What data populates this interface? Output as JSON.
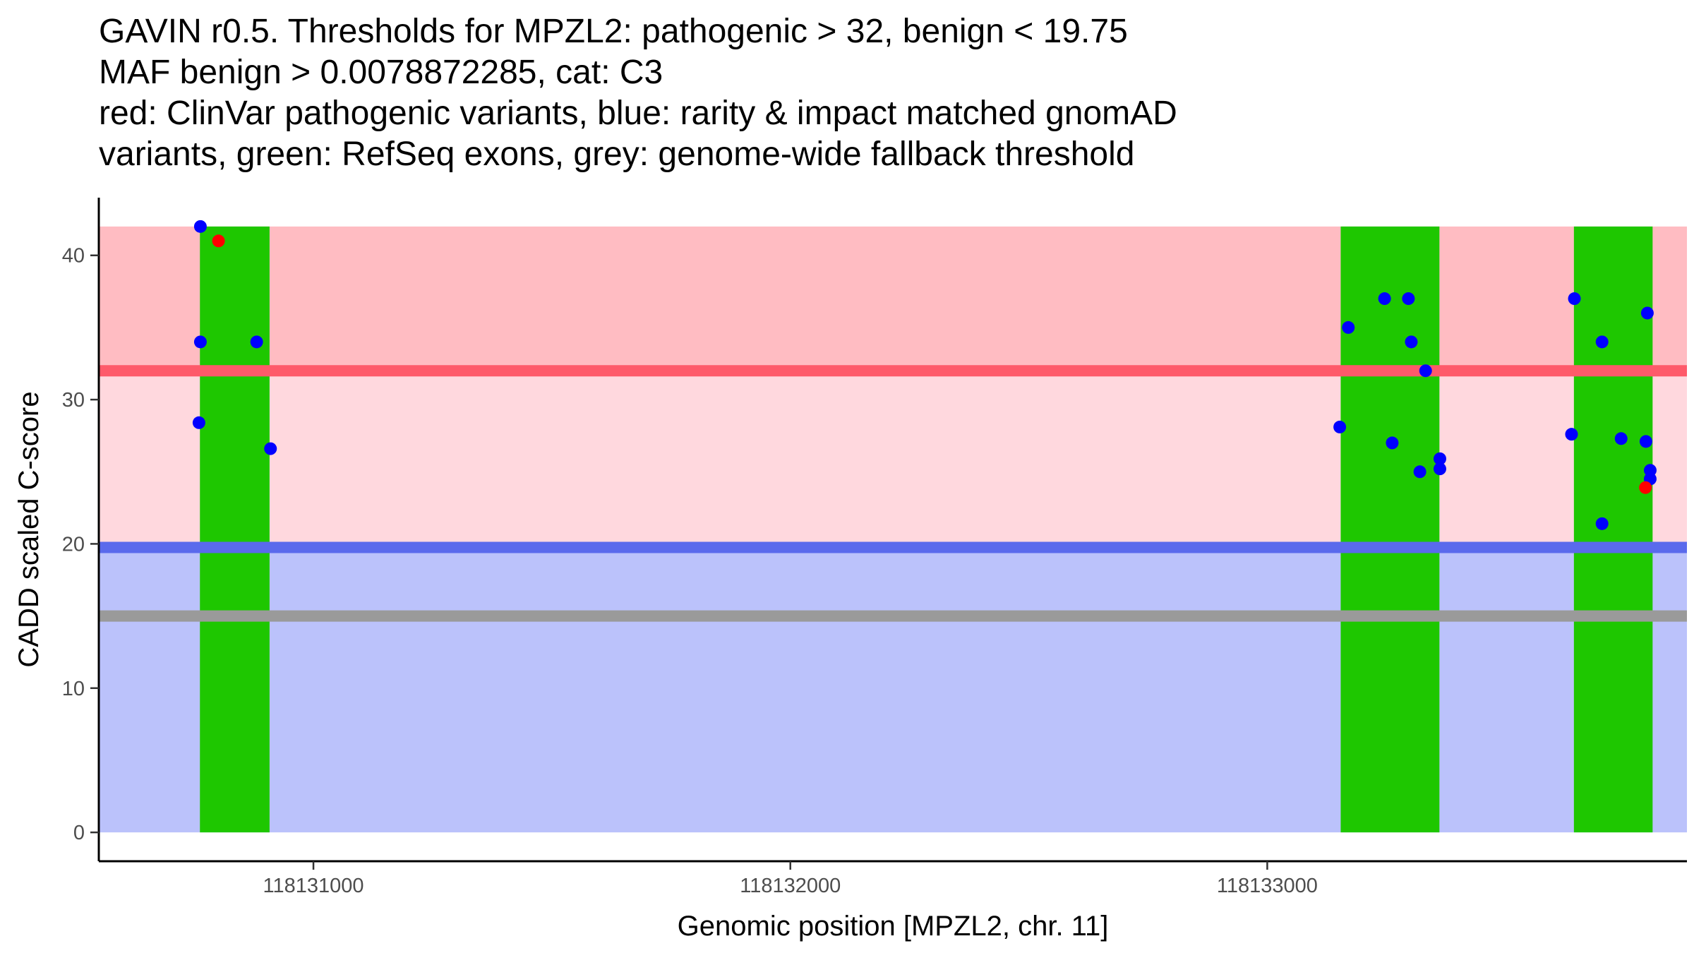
{
  "chart_data": {
    "type": "scatter",
    "title_lines": [
      "GAVIN r0.5. Thresholds for MPZL2: pathogenic > 32, benign < 19.75",
      "MAF benign > 0.0078872285, cat: C3",
      "red: ClinVar pathogenic variants, blue: rarity & impact matched gnomAD",
      "variants, green: RefSeq exons, grey: genome-wide fallback threshold"
    ],
    "xlabel": "Genomic position [MPZL2, chr. 11]",
    "ylabel": "CADD scaled C-score",
    "xlim": [
      118130550,
      118133880
    ],
    "ylim": [
      -2,
      44
    ],
    "x_ticks": [
      118131000,
      118132000,
      118133000
    ],
    "y_ticks": [
      0,
      10,
      20,
      30,
      40
    ],
    "thresholds": {
      "pathogenic": 32,
      "benign": 19.75,
      "fallback": 15,
      "max_score": 42
    },
    "colors": {
      "pathogenic_band": "#ffbcc2",
      "mid_band": "#ffd8de",
      "benign_band": "#bbc2fb",
      "pathogenic_line": "#fe5a6a",
      "benign_line": "#5a6aec",
      "fallback_line": "#9a9a9a",
      "exon": "#1ec700",
      "clinvar": "#ff0000",
      "gnomad": "#0000ff"
    },
    "exons": [
      {
        "start": 118130762,
        "end": 118130908
      },
      {
        "start": 118133154,
        "end": 118133361
      },
      {
        "start": 118133643,
        "end": 118133808
      }
    ],
    "series": [
      {
        "name": "ClinVar pathogenic",
        "color_key": "clinvar",
        "points": [
          {
            "x": 118130801,
            "y": 41
          },
          {
            "x": 118133793,
            "y": 23.9
          }
        ]
      },
      {
        "name": "gnomAD matched",
        "color_key": "gnomad",
        "points": [
          {
            "x": 118130763,
            "y": 42
          },
          {
            "x": 118130763,
            "y": 34
          },
          {
            "x": 118130760,
            "y": 28.4
          },
          {
            "x": 118130881,
            "y": 34
          },
          {
            "x": 118130910,
            "y": 26.6
          },
          {
            "x": 118133152,
            "y": 28.1
          },
          {
            "x": 118133170,
            "y": 35
          },
          {
            "x": 118133246,
            "y": 37
          },
          {
            "x": 118133296,
            "y": 37
          },
          {
            "x": 118133302,
            "y": 34
          },
          {
            "x": 118133332,
            "y": 32
          },
          {
            "x": 118133262,
            "y": 27
          },
          {
            "x": 118133320,
            "y": 25
          },
          {
            "x": 118133362,
            "y": 25.9
          },
          {
            "x": 118133362,
            "y": 25.2
          },
          {
            "x": 118133644,
            "y": 37
          },
          {
            "x": 118133638,
            "y": 27.6
          },
          {
            "x": 118133702,
            "y": 34
          },
          {
            "x": 118133742,
            "y": 27.3
          },
          {
            "x": 118133702,
            "y": 21.4
          },
          {
            "x": 118133797,
            "y": 36
          },
          {
            "x": 118133794,
            "y": 27.1
          },
          {
            "x": 118133803,
            "y": 25.1
          },
          {
            "x": 118133803,
            "y": 24.5
          }
        ]
      }
    ]
  }
}
